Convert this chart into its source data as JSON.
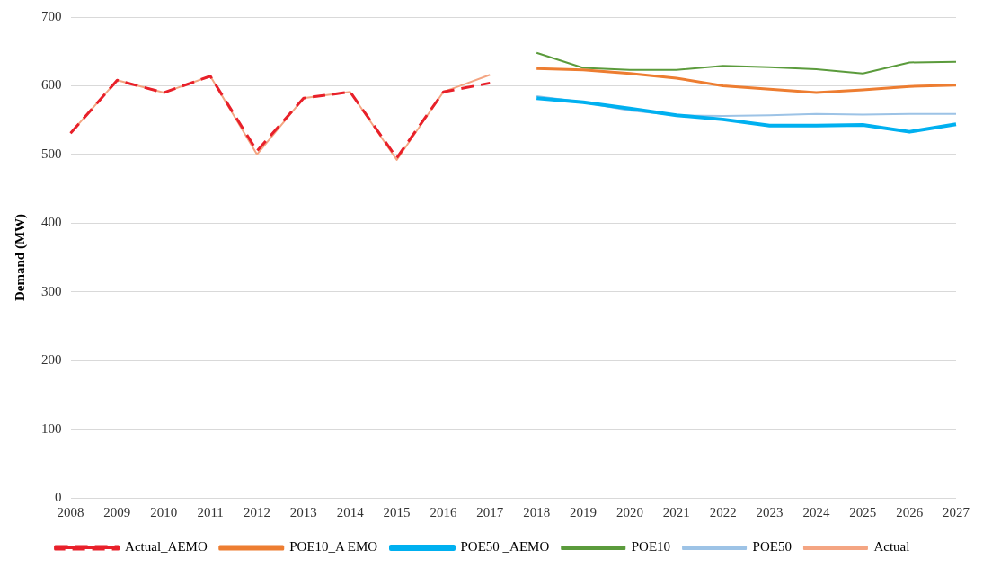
{
  "chart_data": {
    "type": "line",
    "ylabel": "Demand (MW)",
    "categories": [
      "2008",
      "2009",
      "2010",
      "2011",
      "2012",
      "2013",
      "2014",
      "2015",
      "2016",
      "2017",
      "2018",
      "2019",
      "2020",
      "2021",
      "2022",
      "2023",
      "2024",
      "2025",
      "2026",
      "2027"
    ],
    "ylim": [
      0,
      700
    ],
    "yticks": [
      0,
      100,
      200,
      300,
      400,
      500,
      600,
      700
    ],
    "grid": "y",
    "legend": "bottom",
    "marker": "none",
    "series": [
      {
        "name": "Actual_AEMO",
        "color": "#e8202a",
        "line_style": "dashed",
        "values": [
          531,
          608,
          590,
          614,
          505,
          582,
          591,
          495,
          591,
          604,
          null,
          null,
          null,
          null,
          null,
          null,
          null,
          null,
          null,
          null
        ]
      },
      {
        "name": "POE10_A EMO",
        "color": "#ed7d31",
        "line_style": "solid",
        "values": [
          null,
          null,
          null,
          null,
          null,
          null,
          null,
          null,
          null,
          null,
          625,
          623,
          618,
          611,
          600,
          595,
          590,
          594,
          599,
          601
        ]
      },
      {
        "name": "POE50 _AEMO",
        "color": "#00b0f0",
        "line_style": "solid",
        "values": [
          null,
          null,
          null,
          null,
          null,
          null,
          null,
          null,
          null,
          null,
          582,
          576,
          567,
          557,
          551,
          542,
          542,
          543,
          533,
          544
        ]
      },
      {
        "name": "POE10",
        "color": "#5b9b3c",
        "line_style": "solid",
        "values": [
          null,
          null,
          null,
          null,
          null,
          null,
          null,
          null,
          null,
          null,
          648,
          626,
          623,
          623,
          629,
          627,
          624,
          618,
          634,
          635
        ]
      },
      {
        "name": "POE50",
        "color": "#9dc3e6",
        "line_style": "solid",
        "values": [
          null,
          null,
          null,
          null,
          null,
          null,
          null,
          null,
          null,
          null,
          585,
          576,
          564,
          557,
          556,
          557,
          559,
          558,
          559,
          559
        ]
      },
      {
        "name": "Actual",
        "color": "#f4a582",
        "line_style": "solid",
        "values": [
          531,
          608,
          590,
          614,
          500,
          582,
          591,
          492,
          591,
          616,
          null,
          null,
          null,
          null,
          null,
          null,
          null,
          null,
          null,
          null
        ]
      }
    ]
  }
}
